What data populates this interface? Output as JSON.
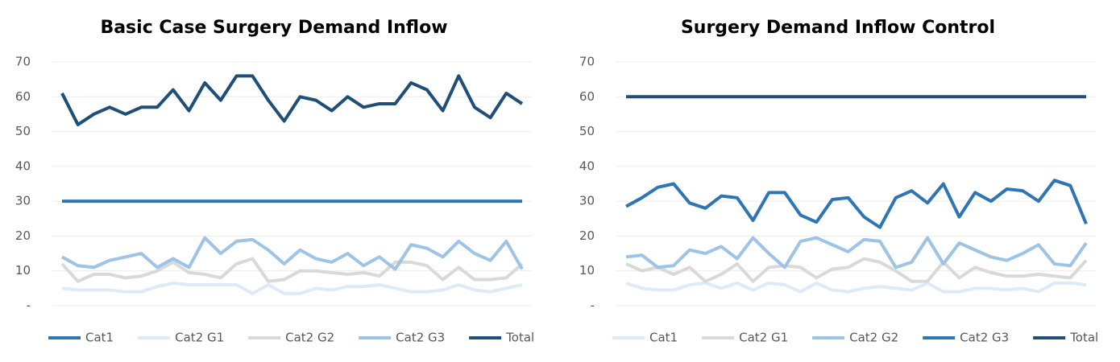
{
  "chart_data": [
    {
      "type": "line",
      "title": "Basic Case Surgery Demand Inflow",
      "ylim": [
        0,
        70
      ],
      "yticks": [
        {
          "value": 0,
          "label": "-"
        },
        10,
        20,
        30,
        40,
        50,
        60,
        70
      ],
      "grid": true,
      "legend": "bottom",
      "series": [
        {
          "name": "Cat1",
          "color": "#2e75b6",
          "values": [
            30,
            30,
            30,
            30,
            30,
            30,
            30,
            30,
            30,
            30,
            30,
            30,
            30,
            30,
            30,
            30,
            30,
            30,
            30,
            30,
            30,
            30,
            30,
            30,
            30,
            30,
            30,
            30,
            30,
            30
          ]
        },
        {
          "name": "Cat2 G1",
          "color": "#deebf7",
          "values": [
            5,
            4.5,
            4.5,
            4.5,
            4,
            4,
            5.5,
            6.5,
            6,
            6,
            6,
            6,
            3.5,
            6,
            3.5,
            3.5,
            5,
            4.5,
            5.5,
            5.5,
            6,
            5,
            4,
            4,
            4.5,
            6,
            4.5,
            4,
            5,
            6
          ]
        },
        {
          "name": "Cat2 G2",
          "color": "#d9d9d9",
          "values": [
            12,
            7,
            9,
            9,
            8,
            8.5,
            10,
            12.5,
            9.5,
            9,
            8,
            12,
            13.5,
            7,
            7.5,
            10,
            10,
            9.5,
            9,
            9.5,
            8.5,
            12.5,
            12.5,
            11.5,
            7.5,
            11,
            7.5,
            7.5,
            8,
            12
          ]
        },
        {
          "name": "Cat2 G3",
          "color": "#9dc3e6",
          "values": [
            14,
            11.5,
            11,
            13,
            14,
            15,
            11,
            13.5,
            11,
            19.5,
            15,
            18.5,
            19,
            16,
            12,
            16,
            13.5,
            12.5,
            15,
            11.5,
            14,
            10.5,
            17.5,
            16.5,
            14,
            18.5,
            15,
            13,
            18.5,
            10.5
          ]
        },
        {
          "name": "Total",
          "color": "#1f4e79",
          "values": [
            61,
            52,
            55,
            57,
            55,
            57,
            57,
            62,
            56,
            64,
            59,
            66,
            66,
            59,
            53,
            60,
            59,
            56,
            60,
            57,
            58,
            58,
            64,
            62,
            56,
            66,
            57,
            54,
            61,
            58
          ]
        }
      ]
    },
    {
      "type": "line",
      "title": "Surgery Demand Inflow Control",
      "ylim": [
        0,
        70
      ],
      "yticks": [
        {
          "value": 0,
          "label": "-"
        },
        10,
        20,
        30,
        40,
        50,
        60,
        70
      ],
      "grid": true,
      "legend": "bottom",
      "series": [
        {
          "name": "Cat1",
          "color": "#deebf7",
          "values": [
            6.5,
            5,
            4.5,
            4.5,
            6,
            6.5,
            5,
            6.5,
            4.5,
            6.5,
            6,
            4,
            6.5,
            4.5,
            4,
            5,
            5.5,
            5,
            4.5,
            6.5,
            4,
            4,
            5,
            5,
            4.5,
            5,
            4,
            6.5,
            6.5,
            6
          ]
        },
        {
          "name": "Cat2 G1",
          "color": "#d9d9d9",
          "values": [
            12,
            10,
            11,
            9,
            11,
            7,
            9,
            12,
            7,
            11,
            11.5,
            11,
            8,
            10.5,
            11,
            13.5,
            12.5,
            10,
            7,
            7,
            12.5,
            8,
            11,
            9.5,
            8.5,
            8.5,
            9,
            8.5,
            8,
            13
          ]
        },
        {
          "name": "Cat2 G2",
          "color": "#9dc3e6",
          "values": [
            14,
            14.5,
            11,
            11.5,
            16,
            15,
            17,
            13.5,
            19.5,
            15,
            11,
            18.5,
            19.5,
            17.5,
            15.5,
            19,
            18.5,
            11,
            12.5,
            19.5,
            12,
            18,
            16,
            14,
            13,
            15,
            17.5,
            12,
            11.5,
            18
          ]
        },
        {
          "name": "Cat2 G3",
          "color": "#2e75b6",
          "values": [
            28.5,
            31,
            34,
            35,
            29.5,
            28,
            31.5,
            31,
            24.5,
            32.5,
            32.5,
            26,
            24,
            30.5,
            31,
            25.5,
            22.5,
            31,
            33,
            29.5,
            35,
            25.5,
            32.5,
            30,
            33.5,
            33,
            30,
            36,
            34.5,
            23.5
          ]
        },
        {
          "name": "Total",
          "color": "#1f4e79",
          "values": [
            60,
            60,
            60,
            60,
            60,
            60,
            60,
            60,
            60,
            60,
            60,
            60,
            60,
            60,
            60,
            60,
            60,
            60,
            60,
            60,
            60,
            60,
            60,
            60,
            60,
            60,
            60,
            60,
            60,
            60
          ]
        }
      ]
    }
  ]
}
